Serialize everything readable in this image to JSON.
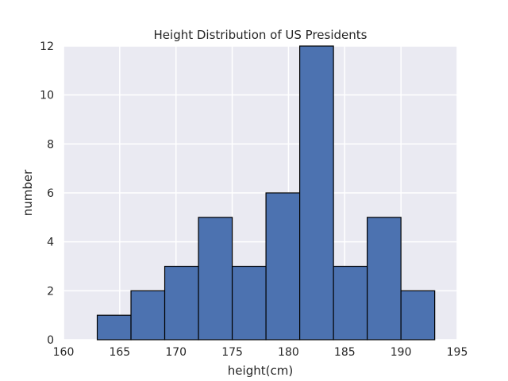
{
  "chart_data": {
    "type": "bar",
    "title": "Height Distribution of US Presidents",
    "xlabel": "height(cm)",
    "ylabel": "number",
    "xlim": [
      160,
      195
    ],
    "ylim": [
      0,
      12
    ],
    "xticks": [
      160,
      165,
      170,
      175,
      180,
      185,
      190,
      195
    ],
    "yticks": [
      0,
      2,
      4,
      6,
      8,
      10,
      12
    ],
    "bins": [
      {
        "x0": 163,
        "x1": 166,
        "value": 1
      },
      {
        "x0": 166,
        "x1": 169,
        "value": 2
      },
      {
        "x0": 169,
        "x1": 172,
        "value": 3
      },
      {
        "x0": 172,
        "x1": 175,
        "value": 5
      },
      {
        "x0": 175,
        "x1": 178,
        "value": 3
      },
      {
        "x0": 178,
        "x1": 181,
        "value": 6
      },
      {
        "x0": 181,
        "x1": 184,
        "value": 12
      },
      {
        "x0": 184,
        "x1": 187,
        "value": 3
      },
      {
        "x0": 187,
        "x1": 190,
        "value": 5
      },
      {
        "x0": 190,
        "x1": 193,
        "value": 2
      }
    ],
    "grid": true,
    "colors": {
      "bar": "#4c72b0",
      "bar_edge": "#000000",
      "plot_bg": "#eaeaf2",
      "grid": "#ffffff"
    }
  }
}
